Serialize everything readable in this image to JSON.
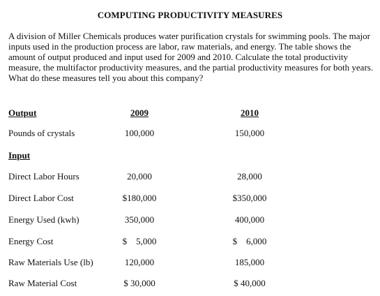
{
  "title": "COMPUTING PRODUCTIVITY MEASURES",
  "problem_text": "A division of Miller Chemicals produces water purification crystals for swimming pools.  The major inputs used in the production process are labor, raw materials, and energy.  The table shows the amount of output produced and input used for 2009 and 2010.  Calculate the total productivity measure, the multifactor productivity measures, and the partial productivity measures for both years.  What do these measures tell you about this company?",
  "table": {
    "output_header": "Output",
    "year_headers": [
      "2009",
      "2010"
    ],
    "output_rows": [
      {
        "label": "Pounds of crystals",
        "y2009": "100,000",
        "y2010": "150,000"
      }
    ],
    "input_header": "Input",
    "input_rows": [
      {
        "label": "Direct Labor Hours",
        "y2009": "20,000",
        "y2010": "28,000"
      },
      {
        "label": "Direct Labor Cost",
        "y2009": "$180,000",
        "y2010": "$350,000"
      },
      {
        "label": "Energy Used (kwh)",
        "y2009": "350,000",
        "y2010": "400,000"
      },
      {
        "label": "Energy Cost",
        "y2009": "$    5,000",
        "y2010": "$    6,000"
      },
      {
        "label": "Raw Materials Use (lb)",
        "y2009": "120,000",
        "y2010": "185,000"
      },
      {
        "label": "Raw Material Cost",
        "y2009": "$ 30,000",
        "y2010": "$ 40,000"
      }
    ]
  }
}
